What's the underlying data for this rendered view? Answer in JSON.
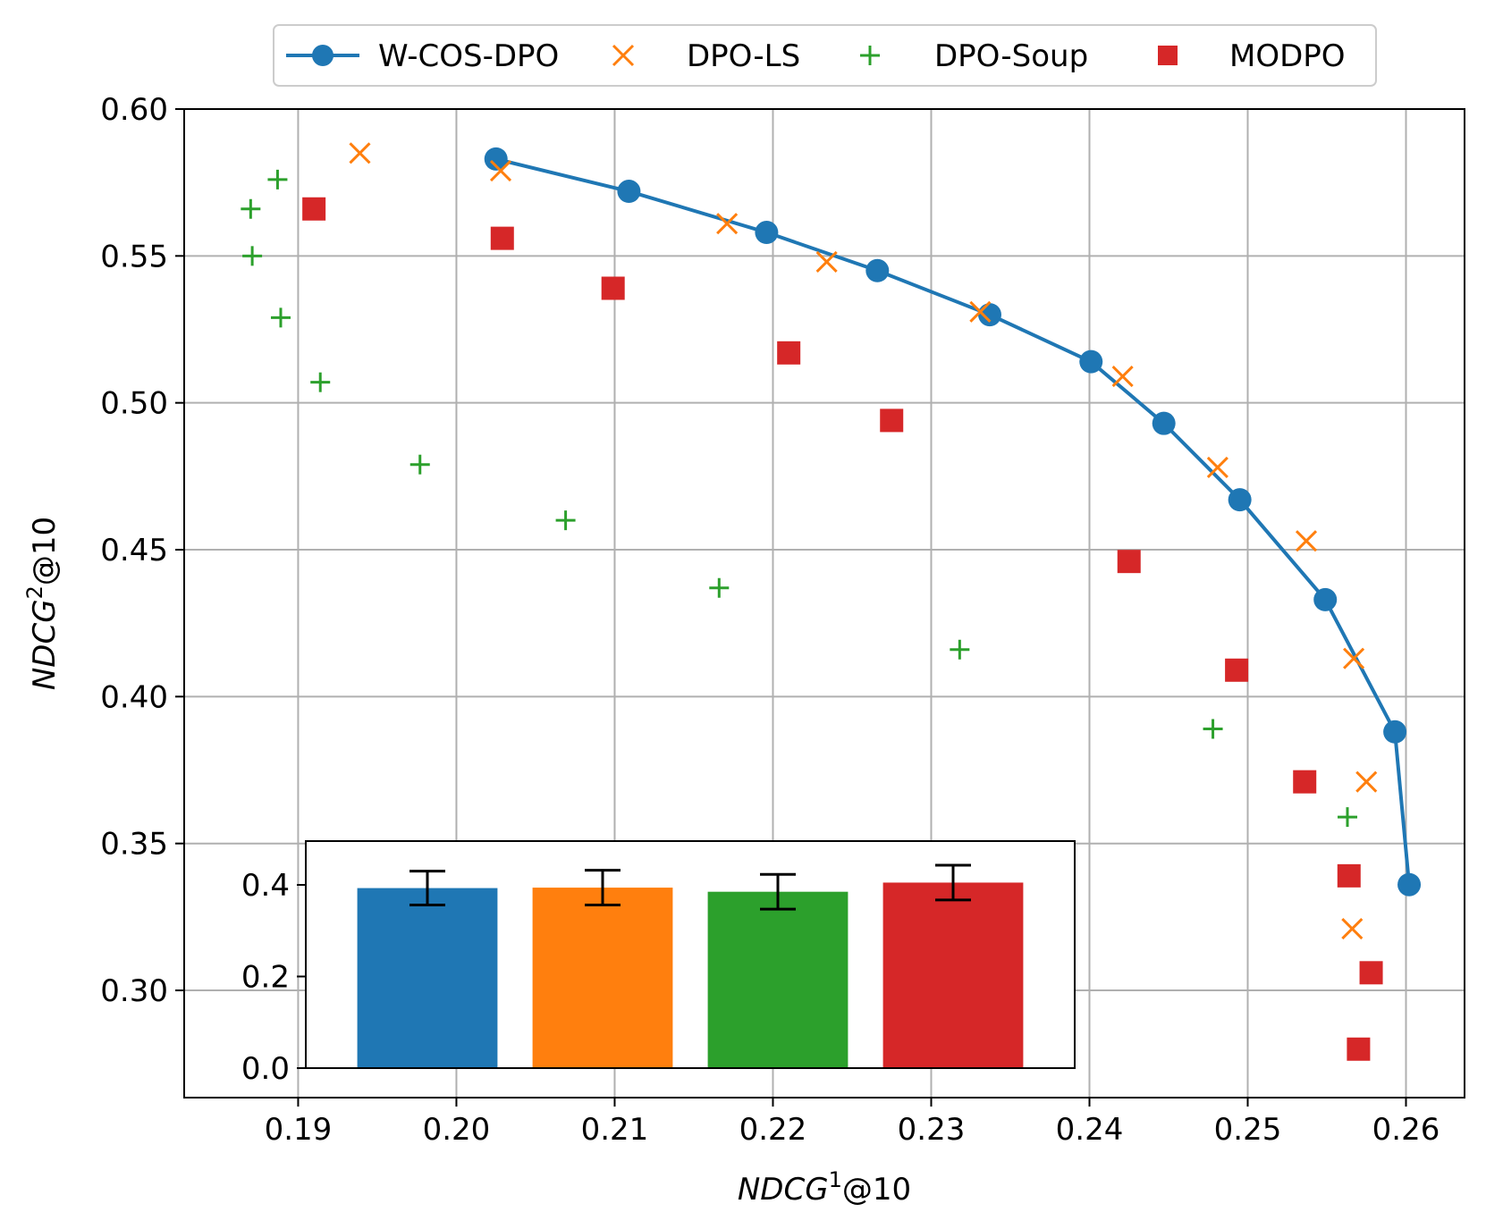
{
  "colors": {
    "W-COS-DPO": "#1f77b4",
    "DPO-LS": "#ff7f0e",
    "DPO-Soup": "#2ca02c",
    "MODPO": "#d62728"
  },
  "chart_data": [
    {
      "type": "scatter",
      "xlabel_base": "NDCG",
      "xlabel_sup": "1",
      "xlabel_suffix": "@10",
      "ylabel_base": "NDCG",
      "ylabel_sup": "2",
      "ylabel_suffix": "@10",
      "xlim": [
        0.1828,
        0.2637
      ],
      "ylim": [
        0.2635,
        0.6
      ],
      "xticks": [
        0.19,
        0.2,
        0.21,
        0.22,
        0.23,
        0.24,
        0.25,
        0.26
      ],
      "xtick_labels": [
        "0.19",
        "0.20",
        "0.21",
        "0.22",
        "0.23",
        "0.24",
        "0.25",
        "0.26"
      ],
      "yticks": [
        0.3,
        0.35,
        0.4,
        0.45,
        0.5,
        0.55,
        0.6
      ],
      "ytick_labels": [
        "0.30",
        "0.35",
        "0.40",
        "0.45",
        "0.50",
        "0.55",
        "0.60"
      ],
      "grid": true,
      "legend": "top-center",
      "series": [
        {
          "name": "W-COS-DPO",
          "marker": "circle-line",
          "x": [
            0.2025,
            0.2109,
            0.2196,
            0.2266,
            0.2337,
            0.2401,
            0.2447,
            0.2495,
            0.2549,
            0.2593,
            0.2602
          ],
          "y": [
            0.583,
            0.572,
            0.558,
            0.545,
            0.53,
            0.514,
            0.493,
            0.467,
            0.433,
            0.388,
            0.336
          ]
        },
        {
          "name": "DPO-LS",
          "marker": "x",
          "x": [
            0.1939,
            0.2028,
            0.2171,
            0.2234,
            0.2331,
            0.2421,
            0.2481,
            0.2537,
            0.2567,
            0.2575,
            0.2566
          ],
          "y": [
            0.585,
            0.579,
            0.561,
            0.548,
            0.531,
            0.509,
            0.478,
            0.453,
            0.413,
            0.371,
            0.321
          ]
        },
        {
          "name": "DPO-Soup",
          "marker": "plus",
          "x": [
            0.1887,
            0.187,
            0.1871,
            0.1889,
            0.1914,
            0.1977,
            0.2069,
            0.2166,
            0.2318,
            0.2478,
            0.2563
          ],
          "y": [
            0.576,
            0.566,
            0.55,
            0.529,
            0.507,
            0.479,
            0.46,
            0.437,
            0.416,
            0.389,
            0.359
          ]
        },
        {
          "name": "MODPO",
          "marker": "square",
          "x": [
            0.191,
            0.2029,
            0.2099,
            0.221,
            0.2275,
            0.2425,
            0.2493,
            0.2536,
            0.2564,
            0.2578,
            0.257
          ],
          "y": [
            0.566,
            0.556,
            0.539,
            0.517,
            0.494,
            0.446,
            0.409,
            0.371,
            0.339,
            0.306,
            0.28
          ]
        }
      ]
    },
    {
      "type": "bar",
      "categories": [
        "W-COS-DPO",
        "DPO-LS",
        "DPO-Soup",
        "MODPO"
      ],
      "values": [
        0.393,
        0.394,
        0.385,
        0.405
      ],
      "errors": [
        0.037,
        0.038,
        0.038,
        0.038
      ],
      "ylim": [
        0,
        0.48
      ],
      "yticks": [
        0.0,
        0.2,
        0.4
      ],
      "ytick_labels": [
        "0.0",
        "0.2",
        "0.4"
      ]
    }
  ]
}
